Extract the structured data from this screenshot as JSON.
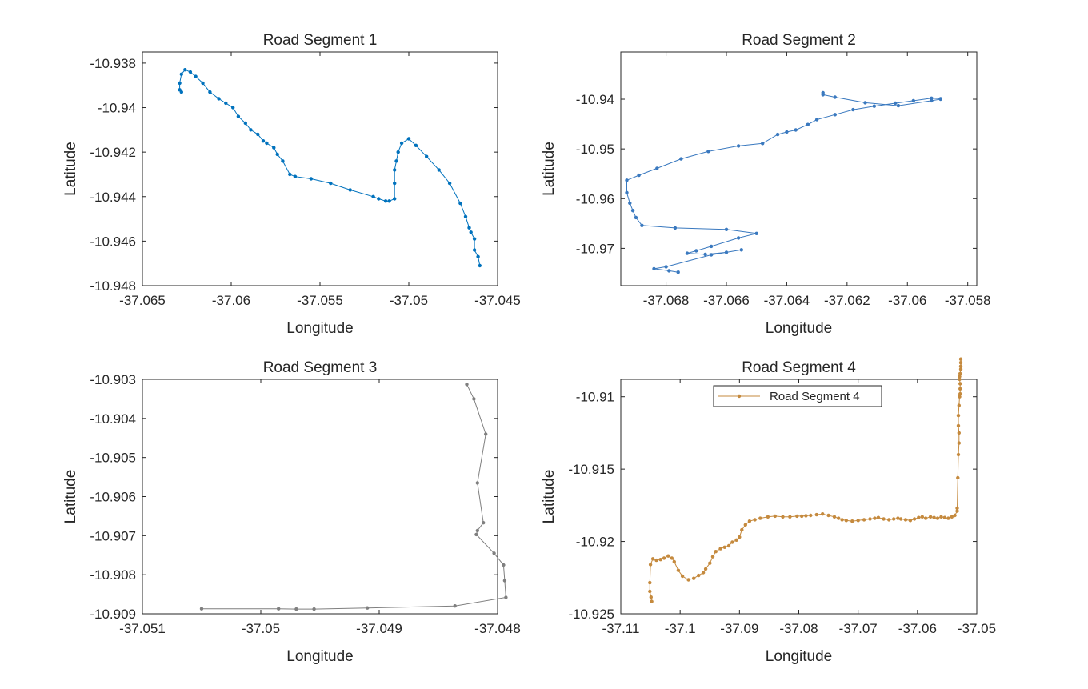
{
  "chart_data": [
    {
      "type": "line",
      "title": "Road Segment 1",
      "xlabel": "Longitude",
      "ylabel": "Latitude",
      "xlim": [
        -37.065,
        -37.045
      ],
      "ylim": [
        -10.948,
        -10.9375
      ],
      "xticks": [
        -37.065,
        -37.06,
        -37.055,
        -37.05,
        -37.045
      ],
      "xtick_labels": [
        "-37.065",
        "-37.06",
        "-37.055",
        "-37.05",
        "-37.045"
      ],
      "yticks": [
        -10.938,
        -10.94,
        -10.942,
        -10.944,
        -10.946,
        -10.948
      ],
      "ytick_labels": [
        "-10.938",
        "-10.94",
        "-10.942",
        "-10.944",
        "-10.946",
        "-10.948"
      ],
      "grid": false,
      "legend": null,
      "series": [
        {
          "color": "#0072BD",
          "x": [
            -37.0628,
            -37.0629,
            -37.0629,
            -37.0628,
            -37.0626,
            -37.0623,
            -37.062,
            -37.0616,
            -37.0612,
            -37.0607,
            -37.0603,
            -37.0599,
            -37.0596,
            -37.0592,
            -37.0589,
            -37.0585,
            -37.0582,
            -37.058,
            -37.0576,
            -37.0574,
            -37.0571,
            -37.0567,
            -37.0564,
            -37.0555,
            -37.0544,
            -37.0533,
            -37.052,
            -37.0517,
            -37.0513,
            -37.0511,
            -37.0508,
            -37.0508,
            -37.0508,
            -37.0507,
            -37.0506,
            -37.0504,
            -37.05,
            -37.0496,
            -37.049,
            -37.0483,
            -37.0477,
            -37.0471,
            -37.0468,
            -37.0466,
            -37.0465,
            -37.0463,
            -37.0463,
            -37.0461,
            -37.046
          ],
          "y": [
            -10.9393,
            -10.9392,
            -10.9389,
            -10.9385,
            -10.9383,
            -10.9384,
            -10.9386,
            -10.9389,
            -10.9393,
            -10.9396,
            -10.9398,
            -10.94,
            -10.9404,
            -10.9407,
            -10.941,
            -10.9412,
            -10.9415,
            -10.9416,
            -10.9418,
            -10.9421,
            -10.9424,
            -10.943,
            -10.9431,
            -10.9432,
            -10.9434,
            -10.9437,
            -10.944,
            -10.9441,
            -10.9442,
            -10.9442,
            -10.9441,
            -10.9434,
            -10.9428,
            -10.9424,
            -10.942,
            -10.9416,
            -10.9414,
            -10.9417,
            -10.9422,
            -10.9428,
            -10.9434,
            -10.9443,
            -10.9449,
            -10.9454,
            -10.9456,
            -10.9459,
            -10.9464,
            -10.9467,
            -10.9471
          ]
        }
      ]
    },
    {
      "type": "line",
      "title": "Road Segment 2",
      "xlabel": "Longitude",
      "ylabel": "Latitude",
      "xlim": [
        -37.0695,
        -37.0577
      ],
      "ylim": [
        -10.9775,
        -10.9305
      ],
      "xticks": [
        -37.068,
        -37.066,
        -37.064,
        -37.062,
        -37.06,
        -37.058
      ],
      "xtick_labels": [
        "-37.068",
        "-37.066",
        "-37.064",
        "-37.062",
        "-37.06",
        "-37.058"
      ],
      "yticks": [
        -10.94,
        -10.95,
        -10.96,
        -10.97
      ],
      "ytick_labels": [
        "-10.94",
        "-10.95",
        "-10.96",
        "-10.97"
      ],
      "grid": false,
      "legend": null,
      "series": [
        {
          "color": "#3A79BF",
          "x": [
            -37.0628,
            -37.0628,
            -37.0624,
            -37.0614,
            -37.0603,
            -37.0592,
            -37.0589,
            -37.0589,
            -37.0592,
            -37.0598,
            -37.0604,
            -37.0611,
            -37.0618,
            -37.0624,
            -37.063,
            -37.0633,
            -37.0637,
            -37.064,
            -37.0643,
            -37.0648,
            -37.0656,
            -37.0666,
            -37.0675,
            -37.0683,
            -37.0689,
            -37.0693,
            -37.0693,
            -37.0692,
            -37.0691,
            -37.069,
            -37.0688,
            -37.0677,
            -37.066,
            -37.065,
            -37.0656,
            -37.0665,
            -37.067,
            -37.0673,
            -37.0667,
            -37.066,
            -37.0655,
            -37.0665,
            -37.068,
            -37.0684,
            -37.0679,
            -37.0676
          ],
          "y": [
            -10.9387,
            -10.9391,
            -10.9396,
            -10.9407,
            -10.9413,
            -10.9403,
            -10.94,
            -10.9399,
            -10.9398,
            -10.9403,
            -10.9408,
            -10.9414,
            -10.9421,
            -10.9431,
            -10.9441,
            -10.9451,
            -10.9462,
            -10.9466,
            -10.9471,
            -10.9489,
            -10.9494,
            -10.9505,
            -10.952,
            -10.9539,
            -10.9553,
            -10.9563,
            -10.9588,
            -10.9609,
            -10.9624,
            -10.9638,
            -10.9654,
            -10.9659,
            -10.9662,
            -10.967,
            -10.9679,
            -10.9696,
            -10.9705,
            -10.971,
            -10.9712,
            -10.9708,
            -10.9703,
            -10.9713,
            -10.9737,
            -10.9741,
            -10.9745,
            -10.9748
          ]
        }
      ]
    },
    {
      "type": "line",
      "title": "Road Segment 3",
      "xlabel": "Longitude",
      "ylabel": "Latitude",
      "xlim": [
        -37.051,
        -37.048
      ],
      "ylim": [
        -10.909,
        -10.903
      ],
      "xticks": [
        -37.051,
        -37.05,
        -37.049,
        -37.048
      ],
      "xtick_labels": [
        "-37.051",
        "-37.05",
        "-37.049",
        "-37.048"
      ],
      "yticks": [
        -10.903,
        -10.904,
        -10.905,
        -10.906,
        -10.907,
        -10.908,
        -10.909
      ],
      "ytick_labels": [
        "-10.903",
        "-10.904",
        "-10.905",
        "-10.906",
        "-10.907",
        "-10.908",
        "-10.909"
      ],
      "grid": false,
      "legend": null,
      "series": [
        {
          "color": "#7F7F7F",
          "x": [
            -37.04826,
            -37.0482,
            -37.0481,
            -37.04817,
            -37.04812,
            -37.04817,
            -37.04818,
            -37.04803,
            -37.04795,
            -37.04794,
            -37.04793,
            -37.04836,
            -37.0491,
            -37.04955,
            -37.0497,
            -37.04985,
            -37.0505
          ],
          "y": [
            -10.90313,
            -10.9035,
            -10.9044,
            -10.90565,
            -10.90667,
            -10.90687,
            -10.90697,
            -10.90745,
            -10.90775,
            -10.90815,
            -10.90858,
            -10.9088,
            -10.90885,
            -10.90888,
            -10.90888,
            -10.90887,
            -10.90887
          ]
        }
      ]
    },
    {
      "type": "line",
      "title": "Road Segment 4",
      "xlabel": "Longitude",
      "ylabel": "Latitude",
      "xlim": [
        -37.11,
        -37.05
      ],
      "ylim": [
        -10.925,
        -10.9088
      ],
      "xticks": [
        -37.11,
        -37.1,
        -37.09,
        -37.08,
        -37.07,
        -37.06,
        -37.05
      ],
      "xtick_labels": [
        "-37.11",
        "-37.1",
        "-37.09",
        "-37.08",
        "-37.07",
        "-37.06",
        "-37.05"
      ],
      "yticks": [
        -10.91,
        -10.915,
        -10.92,
        -10.925
      ],
      "ytick_labels": [
        "-10.91",
        "-10.915",
        "-10.92",
        "-10.925"
      ],
      "grid": false,
      "legend": "top-center",
      "series": [
        {
          "name": "Road Segment 4",
          "color": "#C58A3E",
          "x": [
            -37.1048,
            -37.1049,
            -37.1051,
            -37.1051,
            -37.105,
            -37.1046,
            -37.104,
            -37.1033,
            -37.1027,
            -37.102,
            -37.1014,
            -37.101,
            -37.1003,
            -37.0996,
            -37.0986,
            -37.0977,
            -37.0969,
            -37.0961,
            -37.0957,
            -37.095,
            -37.0945,
            -37.094,
            -37.0932,
            -37.0925,
            -37.0918,
            -37.0912,
            -37.0905,
            -37.09,
            -37.0896,
            -37.089,
            -37.0883,
            -37.0874,
            -37.0865,
            -37.0852,
            -37.084,
            -37.0827,
            -37.0815,
            -37.0803,
            -37.0795,
            -37.0788,
            -37.078,
            -37.077,
            -37.076,
            -37.075,
            -37.074,
            -37.0733,
            -37.0727,
            -37.072,
            -37.071,
            -37.07,
            -37.069,
            -37.068,
            -37.0672,
            -37.0666,
            -37.0657,
            -37.0648,
            -37.064,
            -37.0633,
            -37.0628,
            -37.062,
            -37.0612,
            -37.0605,
            -37.0598,
            -37.0592,
            -37.0586,
            -37.0578,
            -37.0572,
            -37.0566,
            -37.056,
            -37.0554,
            -37.0548,
            -37.0542,
            -37.0537,
            -37.0533,
            -37.0533,
            -37.0532,
            -37.0531,
            -37.053,
            -37.053,
            -37.0531,
            -37.0531,
            -37.053,
            -37.0529,
            -37.0528,
            -37.0528,
            -37.0528,
            -37.0529,
            -37.0529,
            -37.0528,
            -37.0527,
            -37.0527,
            -37.0527,
            -37.0527
          ],
          "y": [
            -10.92415,
            -10.92385,
            -10.92345,
            -10.92285,
            -10.9216,
            -10.9212,
            -10.9213,
            -10.92125,
            -10.92115,
            -10.921,
            -10.92115,
            -10.9214,
            -10.922,
            -10.9224,
            -10.92265,
            -10.92255,
            -10.92235,
            -10.92215,
            -10.9219,
            -10.9215,
            -10.92105,
            -10.9207,
            -10.9205,
            -10.9204,
            -10.9203,
            -10.92005,
            -10.9199,
            -10.9197,
            -10.9192,
            -10.91885,
            -10.9186,
            -10.9185,
            -10.9184,
            -10.9183,
            -10.91825,
            -10.9183,
            -10.9183,
            -10.91825,
            -10.91825,
            -10.91822,
            -10.9182,
            -10.91815,
            -10.9181,
            -10.9182,
            -10.9183,
            -10.9184,
            -10.9185,
            -10.91855,
            -10.9186,
            -10.91855,
            -10.9185,
            -10.91845,
            -10.9184,
            -10.91835,
            -10.91845,
            -10.9185,
            -10.91845,
            -10.9184,
            -10.91845,
            -10.9185,
            -10.91855,
            -10.91845,
            -10.91835,
            -10.9183,
            -10.9184,
            -10.9183,
            -10.91835,
            -10.9184,
            -10.9183,
            -10.91835,
            -10.9184,
            -10.9183,
            -10.9182,
            -10.9179,
            -10.9177,
            -10.9156,
            -10.914,
            -10.9132,
            -10.9125,
            -10.912,
            -10.9113,
            -10.9106,
            -10.91,
            -10.9098,
            -10.90945,
            -10.9091,
            -10.9088,
            -10.9086,
            -10.9084,
            -10.9081,
            -10.9079,
            -10.90765,
            -10.9074
          ]
        }
      ]
    }
  ]
}
